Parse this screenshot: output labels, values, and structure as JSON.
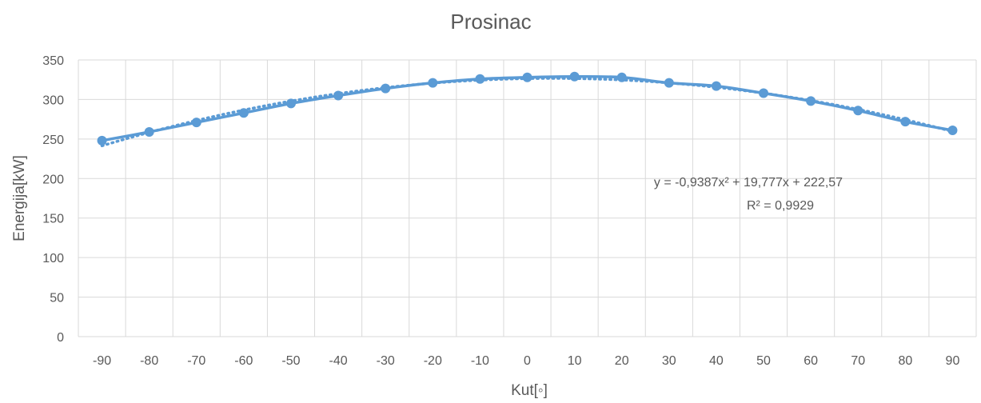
{
  "chart_data": {
    "type": "line",
    "title": "Prosinac",
    "xlabel": "Kut[◦]",
    "ylabel": "Energija[kW]",
    "categories": [
      "-90",
      "-80",
      "-70",
      "-60",
      "-50",
      "-40",
      "-30",
      "-20",
      "-10",
      "0",
      "10",
      "20",
      "30",
      "40",
      "50",
      "60",
      "70",
      "80",
      "90"
    ],
    "y_ticks": [
      "0",
      "50",
      "100",
      "150",
      "200",
      "250",
      "300",
      "350"
    ],
    "ylim": [
      0,
      350
    ],
    "grid": true,
    "series": [
      {
        "values": [
          248,
          259,
          271,
          283,
          295,
          305,
          314,
          321,
          326,
          328,
          329,
          328,
          321,
          317,
          308,
          298,
          286,
          272,
          261
        ]
      }
    ],
    "trendline": {
      "type": "polynomial-2",
      "style": "dotted",
      "equation": "y = -0,9387x² + 19,777x + 222,57",
      "r_squared": "R² = 0,9929",
      "coefficients": {
        "a": -0.9387,
        "b": 19.777,
        "c": 222.57
      }
    },
    "colors": {
      "series": "#5b9bd5",
      "grid": "#d9d9d9",
      "text": "#595959"
    }
  }
}
